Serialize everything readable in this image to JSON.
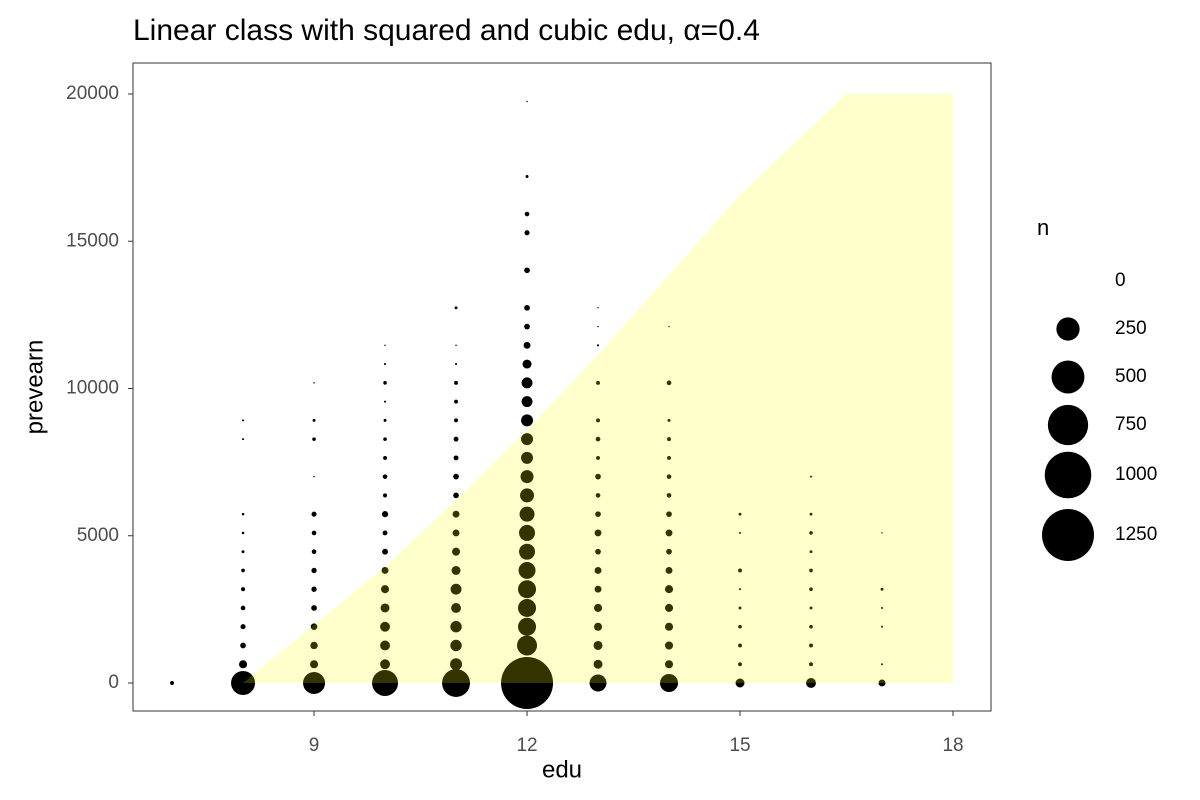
{
  "chart_data": {
    "type": "bubble",
    "title": "Linear class with squared and cubic edu, α=0.4",
    "x_label": "edu",
    "y_label": "prevearn",
    "xlim": [
      6.45,
      18.535
    ],
    "ylim": [
      -951,
      21053
    ],
    "xticks": [
      9,
      12,
      15,
      18
    ],
    "yticks": [
      0,
      5000,
      10000,
      15000,
      20000
    ],
    "grid": false,
    "series": [
      {
        "color": "#000000",
        "x": [
          7,
          8,
          8,
          8,
          8,
          8,
          8,
          8,
          8,
          8,
          8,
          8,
          8,
          9,
          9,
          9,
          9,
          9,
          9,
          9,
          9,
          9,
          9,
          9,
          9,
          9,
          9,
          10,
          10,
          10,
          10,
          10,
          10,
          10,
          10,
          10,
          10,
          10,
          10,
          10,
          10,
          10,
          10,
          10,
          10,
          10,
          11,
          11,
          11,
          11,
          11,
          11,
          11,
          11,
          11,
          11,
          11,
          11,
          11,
          11,
          11,
          11,
          11,
          11,
          11,
          11,
          12,
          12,
          12,
          12,
          12,
          12,
          12,
          12,
          12,
          12,
          12,
          12,
          12,
          12,
          12,
          12,
          12,
          12,
          12,
          12,
          12,
          12,
          12,
          12,
          12,
          13,
          13,
          13,
          13,
          13,
          13,
          13,
          13,
          13,
          13,
          13,
          13,
          13,
          13,
          13,
          13,
          13,
          13,
          13,
          14,
          14,
          14,
          14,
          14,
          14,
          14,
          14,
          14,
          14,
          14,
          14,
          14,
          14,
          14,
          14,
          14,
          15,
          15,
          15,
          15,
          15,
          15,
          15,
          15,
          15,
          16,
          16,
          16,
          16,
          16,
          16,
          16,
          16,
          16,
          16,
          16,
          17,
          17,
          17,
          17,
          17,
          17
        ],
        "y": [
          0,
          0,
          637,
          1274,
          1911,
          2548,
          3185,
          3822,
          4459,
          5096,
          5733,
          8281,
          8918,
          0,
          637,
          1274,
          1911,
          2548,
          3185,
          3822,
          4459,
          5096,
          5733,
          7007,
          8281,
          8918,
          10192,
          0,
          637,
          1274,
          1911,
          2548,
          3185,
          3822,
          4459,
          5096,
          5733,
          6370,
          7007,
          7644,
          8281,
          8918,
          9555,
          10192,
          10829,
          11466,
          0,
          637,
          1274,
          1911,
          2548,
          3185,
          3822,
          4459,
          5096,
          5733,
          6370,
          7007,
          7644,
          8281,
          8918,
          9555,
          10192,
          10829,
          11466,
          12740,
          0,
          1274,
          1911,
          2548,
          3185,
          3822,
          4459,
          5096,
          5733,
          6370,
          7007,
          7644,
          8281,
          8918,
          9555,
          10192,
          10829,
          11466,
          12103,
          12740,
          14014,
          15288,
          15925,
          17199,
          19747,
          0,
          637,
          1274,
          1911,
          2548,
          3185,
          3822,
          4459,
          5096,
          5733,
          6370,
          7007,
          7644,
          8281,
          8918,
          10192,
          11466,
          12103,
          12740,
          0,
          637,
          1274,
          1911,
          2548,
          3185,
          3822,
          4459,
          5096,
          5733,
          6370,
          7007,
          7644,
          8281,
          8918,
          10192,
          12103,
          0,
          637,
          1274,
          1911,
          2548,
          3185,
          3822,
          5096,
          5733,
          0,
          637,
          1274,
          1911,
          2548,
          3185,
          3822,
          4459,
          5096,
          5733,
          7007,
          0,
          637,
          1911,
          2548,
          3185,
          5096
        ],
        "sizes": [
          7,
          266,
          30,
          15,
          12,
          10,
          8,
          6,
          4,
          3,
          3,
          2,
          2,
          224,
          30,
          25,
          20,
          15,
          13,
          13,
          10,
          10,
          12,
          1,
          6,
          4,
          1,
          312,
          45,
          45,
          45,
          37,
          30,
          22,
          16,
          11,
          18,
          8,
          10,
          7,
          6,
          4,
          2,
          6,
          2,
          1,
          362,
          66,
          60,
          60,
          45,
          55,
          37,
          30,
          22,
          22,
          15,
          15,
          11,
          11,
          7,
          7,
          7,
          2,
          1,
          4,
          1250,
          185,
          150,
          150,
          150,
          133,
          118,
          118,
          104,
          90,
          78,
          66,
          66,
          66,
          55,
          55,
          37,
          22,
          15,
          15,
          15,
          12,
          10,
          4,
          1,
          133,
          37,
          37,
          30,
          30,
          22,
          22,
          15,
          22,
          15,
          10,
          15,
          7,
          10,
          7,
          7,
          2,
          1,
          1,
          150,
          30,
          30,
          30,
          30,
          30,
          22,
          15,
          22,
          15,
          10,
          10,
          7,
          7,
          4,
          10,
          1,
          37,
          7,
          7,
          6,
          4,
          2,
          7,
          2,
          4,
          45,
          7,
          7,
          6,
          4,
          6,
          6,
          4,
          6,
          4,
          2,
          22,
          2,
          2,
          2,
          4,
          1
        ]
      }
    ],
    "region": {
      "color": "#ffff00",
      "opacity": 0.2,
      "x": [
        8,
        9,
        10,
        11,
        12,
        13,
        14,
        15,
        16.5,
        18,
        18
      ],
      "y": [
        0,
        1970,
        3940,
        6210,
        8590,
        11140,
        13850,
        16570,
        20000,
        20000,
        0
      ]
    },
    "size_legend": {
      "title": "n",
      "values": [
        0,
        250,
        500,
        750,
        1000,
        1250
      ]
    }
  }
}
